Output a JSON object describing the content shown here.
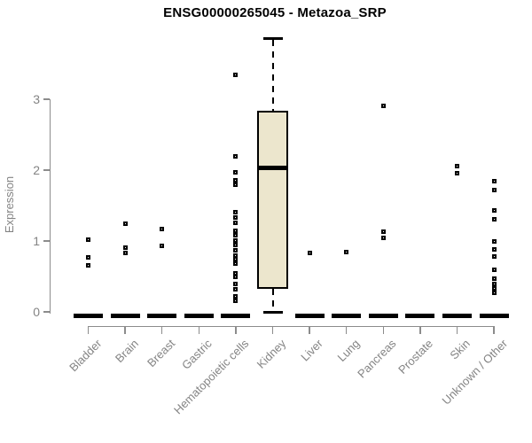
{
  "chart_data": {
    "type": "boxplot",
    "title": "ENSG00000265045 - Metazoa_SRP",
    "ylabel": "Expression",
    "xlabel": "",
    "yticks": [
      0,
      1,
      2,
      3
    ],
    "ylim": [
      0,
      3.9
    ],
    "grid": false,
    "legend": "none",
    "categories": [
      "Bladder",
      "Brain",
      "Breast",
      "Gastric",
      "Hematopoietic cells",
      "Kidney",
      "Liver",
      "Lung",
      "Pancreas",
      "Prostate",
      "Skin",
      "Unknown / Other"
    ],
    "boxes": [
      {
        "category": "Bladder",
        "median": 0,
        "outliers": [
          1.02,
          0.77,
          0.66
        ]
      },
      {
        "category": "Brain",
        "median": 0,
        "outliers": [
          1.25,
          0.91,
          0.83
        ]
      },
      {
        "category": "Breast",
        "median": 0,
        "outliers": [
          1.17,
          0.93
        ]
      },
      {
        "category": "Gastric",
        "median": 0,
        "outliers": []
      },
      {
        "category": "Hematopoietic cells",
        "median": 0,
        "outliers": [
          3.35,
          2.2,
          1.97,
          1.86,
          1.79,
          1.41,
          1.33,
          1.26,
          1.14,
          1.08,
          1.01,
          0.95,
          0.87,
          0.8,
          0.74,
          0.68,
          0.55,
          0.5,
          0.39,
          0.32,
          0.22,
          0.16
        ]
      },
      {
        "category": "Kidney",
        "median": 2.03,
        "q1": 0.32,
        "q3": 2.84,
        "whisker_low": 0,
        "whisker_high": 3.86,
        "outliers": []
      },
      {
        "category": "Liver",
        "median": 0,
        "outliers": [
          0.83
        ]
      },
      {
        "category": "Lung",
        "median": 0,
        "outliers": [
          0.84
        ]
      },
      {
        "category": "Pancreas",
        "median": 0,
        "outliers": [
          2.91,
          1.13,
          1.04
        ]
      },
      {
        "category": "Prostate",
        "median": 0,
        "outliers": []
      },
      {
        "category": "Skin",
        "median": 0,
        "outliers": [
          2.06,
          1.96
        ]
      },
      {
        "category": "Unknown / Other",
        "median": 0,
        "outliers": [
          1.84,
          1.72,
          1.43,
          1.31,
          0.99,
          0.88,
          0.78,
          0.59,
          0.47,
          0.4,
          0.33,
          0.27
        ]
      }
    ],
    "colors": {
      "box_fill": "#ECE6CD",
      "box_border": "#000000",
      "median": "#000000",
      "axis": "#8C8C8C",
      "tick_text": "#848484",
      "title": "#000000",
      "background": "#FFFFFF"
    }
  }
}
